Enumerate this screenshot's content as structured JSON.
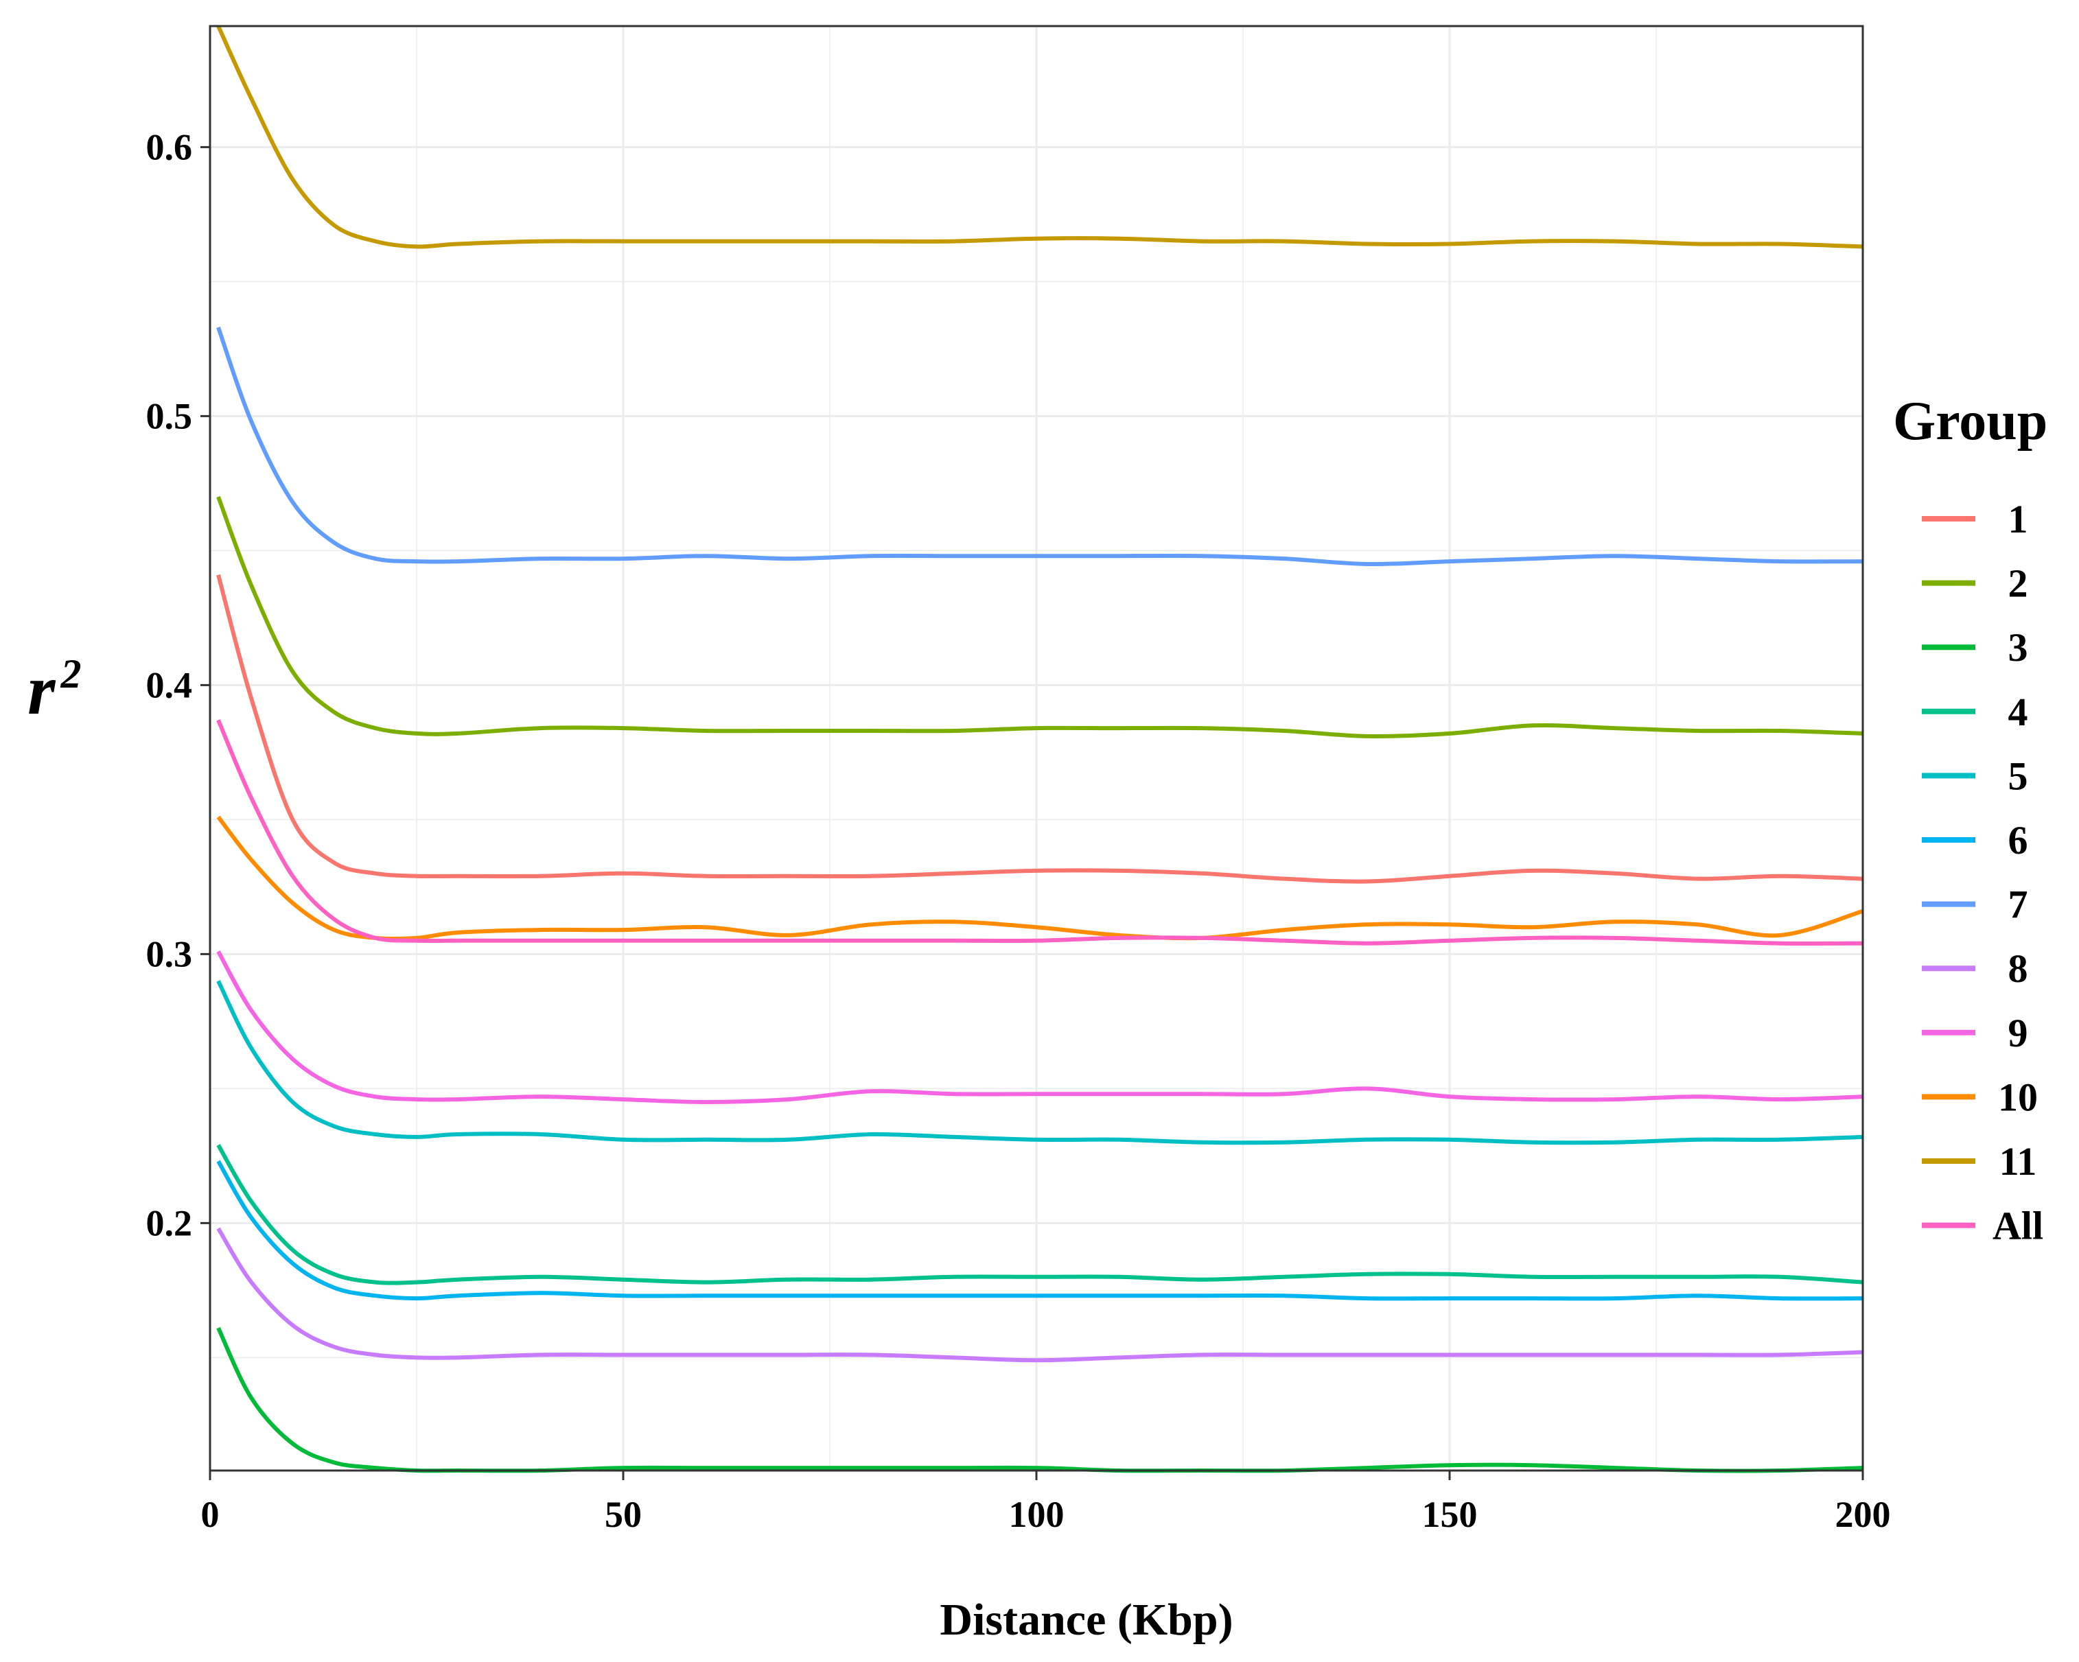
{
  "chart_data": {
    "type": "line",
    "title": "",
    "xlabel": "Distance (Kbp)",
    "ylabel": "r",
    "ylabel_superscript": "2",
    "xlim": [
      0,
      200
    ],
    "ylim": [
      0.108,
      0.645
    ],
    "xticks": [
      0,
      50,
      100,
      150,
      200
    ],
    "yticks": [
      0.2,
      0.3,
      0.4,
      0.5,
      0.6
    ],
    "grid": true,
    "legend": {
      "title": "Group",
      "position": "right"
    },
    "x": [
      1,
      5,
      10,
      15,
      20,
      25,
      30,
      40,
      50,
      60,
      70,
      80,
      90,
      100,
      110,
      120,
      130,
      140,
      150,
      160,
      170,
      180,
      190,
      200
    ],
    "series": [
      {
        "name": "1",
        "color": "#F8766D",
        "values": [
          0.441,
          0.395,
          0.35,
          0.334,
          0.33,
          0.329,
          0.329,
          0.329,
          0.33,
          0.329,
          0.329,
          0.329,
          0.33,
          0.331,
          0.331,
          0.33,
          0.328,
          0.327,
          0.329,
          0.331,
          0.33,
          0.328,
          0.329,
          0.328
        ]
      },
      {
        "name": "2",
        "color": "#7CAE00",
        "values": [
          0.47,
          0.437,
          0.405,
          0.39,
          0.384,
          0.382,
          0.382,
          0.384,
          0.384,
          0.383,
          0.383,
          0.383,
          0.383,
          0.384,
          0.384,
          0.384,
          0.383,
          0.381,
          0.382,
          0.385,
          0.384,
          0.383,
          0.383,
          0.382
        ]
      },
      {
        "name": "3",
        "color": "#00BA38",
        "values": [
          0.161,
          0.135,
          0.118,
          0.111,
          0.109,
          0.108,
          0.108,
          0.108,
          0.109,
          0.109,
          0.109,
          0.109,
          0.109,
          0.109,
          0.108,
          0.108,
          0.108,
          0.109,
          0.11,
          0.11,
          0.109,
          0.108,
          0.108,
          0.109
        ]
      },
      {
        "name": "4",
        "color": "#00C08B",
        "values": [
          0.229,
          0.208,
          0.19,
          0.181,
          0.178,
          0.178,
          0.179,
          0.18,
          0.179,
          0.178,
          0.179,
          0.179,
          0.18,
          0.18,
          0.18,
          0.179,
          0.18,
          0.181,
          0.181,
          0.18,
          0.18,
          0.18,
          0.18,
          0.178
        ]
      },
      {
        "name": "5",
        "color": "#00BFC4",
        "values": [
          0.29,
          0.265,
          0.245,
          0.236,
          0.233,
          0.232,
          0.233,
          0.233,
          0.231,
          0.231,
          0.231,
          0.233,
          0.232,
          0.231,
          0.231,
          0.23,
          0.23,
          0.231,
          0.231,
          0.23,
          0.23,
          0.231,
          0.231,
          0.232
        ]
      },
      {
        "name": "6",
        "color": "#00B4F0",
        "values": [
          0.223,
          0.202,
          0.185,
          0.176,
          0.173,
          0.172,
          0.173,
          0.174,
          0.173,
          0.173,
          0.173,
          0.173,
          0.173,
          0.173,
          0.173,
          0.173,
          0.173,
          0.172,
          0.172,
          0.172,
          0.172,
          0.173,
          0.172,
          0.172
        ]
      },
      {
        "name": "7",
        "color": "#619CFF",
        "values": [
          0.533,
          0.498,
          0.468,
          0.453,
          0.447,
          0.446,
          0.446,
          0.447,
          0.447,
          0.448,
          0.447,
          0.448,
          0.448,
          0.448,
          0.448,
          0.448,
          0.447,
          0.445,
          0.446,
          0.447,
          0.448,
          0.447,
          0.446,
          0.446
        ]
      },
      {
        "name": "8",
        "color": "#C77CFF",
        "values": [
          0.198,
          0.178,
          0.162,
          0.154,
          0.151,
          0.15,
          0.15,
          0.151,
          0.151,
          0.151,
          0.151,
          0.151,
          0.15,
          0.149,
          0.15,
          0.151,
          0.151,
          0.151,
          0.151,
          0.151,
          0.151,
          0.151,
          0.151,
          0.152
        ]
      },
      {
        "name": "9",
        "color": "#F564E3",
        "values": [
          0.301,
          0.279,
          0.261,
          0.251,
          0.247,
          0.246,
          0.246,
          0.247,
          0.246,
          0.245,
          0.246,
          0.249,
          0.248,
          0.248,
          0.248,
          0.248,
          0.248,
          0.25,
          0.247,
          0.246,
          0.246,
          0.247,
          0.246,
          0.247
        ]
      },
      {
        "name": "10",
        "color": "#FF8C00",
        "values": [
          0.351,
          0.335,
          0.319,
          0.309,
          0.306,
          0.306,
          0.308,
          0.309,
          0.309,
          0.31,
          0.307,
          0.311,
          0.312,
          0.31,
          0.307,
          0.306,
          0.309,
          0.311,
          0.311,
          0.31,
          0.312,
          0.311,
          0.307,
          0.316
        ]
      },
      {
        "name": "11",
        "color": "#C49A00",
        "values": [
          0.645,
          0.618,
          0.588,
          0.571,
          0.565,
          0.563,
          0.564,
          0.565,
          0.565,
          0.565,
          0.565,
          0.565,
          0.565,
          0.566,
          0.566,
          0.565,
          0.565,
          0.564,
          0.564,
          0.565,
          0.565,
          0.564,
          0.564,
          0.563
        ]
      },
      {
        "name": "All",
        "color": "#FF61C3",
        "values": [
          0.387,
          0.358,
          0.329,
          0.313,
          0.306,
          0.305,
          0.305,
          0.305,
          0.305,
          0.305,
          0.305,
          0.305,
          0.305,
          0.305,
          0.306,
          0.306,
          0.305,
          0.304,
          0.305,
          0.306,
          0.306,
          0.305,
          0.304,
          0.304
        ]
      }
    ]
  }
}
